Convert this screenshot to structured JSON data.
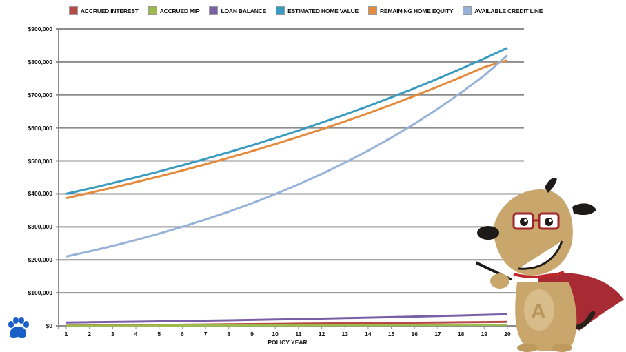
{
  "chart_data": {
    "type": "line",
    "title": "",
    "xlabel": "POLICY YEAR",
    "ylabel": "",
    "ylim": [
      0,
      900000
    ],
    "grid": true,
    "legend_position": "top",
    "y_ticks": [
      "$0",
      "$100,000",
      "$200,000",
      "$300,000",
      "$400,000",
      "$500,000",
      "$600,000",
      "$700,000",
      "$800,000",
      "$900,000"
    ],
    "x": [
      1,
      2,
      3,
      4,
      5,
      6,
      7,
      8,
      9,
      10,
      11,
      12,
      13,
      14,
      15,
      16,
      17,
      18,
      19,
      20
    ],
    "series": [
      {
        "name": "ACCRUED INTEREST",
        "color": "#b84a45",
        "values": [
          500,
          1000,
          1600,
          2200,
          2800,
          3400,
          4000,
          4600,
          5200,
          5800,
          6400,
          7000,
          7600,
          8200,
          8800,
          9400,
          10000,
          10600,
          11200,
          11800
        ]
      },
      {
        "name": "ACCRUED MIP",
        "color": "#9bbb4e",
        "values": [
          200,
          350,
          500,
          650,
          800,
          950,
          1100,
          1250,
          1400,
          1550,
          1700,
          1850,
          2000,
          2150,
          2300,
          2450,
          2600,
          2750,
          2900,
          3050
        ]
      },
      {
        "name": "LOAN BALANCE",
        "color": "#7b5fa6",
        "values": [
          10000,
          10800,
          11700,
          12600,
          13600,
          14600,
          15700,
          16800,
          18000,
          19200,
          20500,
          21900,
          23300,
          24800,
          26300,
          27900,
          29600,
          31300,
          33100,
          35000
        ]
      },
      {
        "name": "ESTIMATED HOME VALUE",
        "color": "#3a9ac0",
        "values": [
          400000,
          416000,
          432600,
          449900,
          467900,
          486600,
          506100,
          526300,
          547400,
          569300,
          592000,
          615700,
          640300,
          665900,
          692600,
          720300,
          749100,
          779000,
          810200,
          842600
        ]
      },
      {
        "name": "REMAINING HOME EQUITY",
        "color": "#e58a3a",
        "values": [
          387000,
          402500,
          418600,
          435300,
          452700,
          470800,
          489600,
          509200,
          529600,
          550800,
          572800,
          595700,
          619500,
          644300,
          670100,
          697000,
          724800,
          753800,
          784000,
          805000
        ]
      },
      {
        "name": "AVAILABLE CREDIT LINE",
        "color": "#96b2d9",
        "values": [
          210000,
          225500,
          242200,
          260100,
          279300,
          300000,
          322200,
          346000,
          371600,
          399100,
          428600,
          460300,
          494400,
          531000,
          570300,
          612500,
          657800,
          706500,
          758700,
          820000
        ]
      }
    ]
  },
  "legend": [
    {
      "label": "ACCRUED INTEREST",
      "color": "#b84a45"
    },
    {
      "label": "ACCRUED MIP",
      "color": "#9bbb4e"
    },
    {
      "label": "LOAN BALANCE",
      "color": "#7b5fa6"
    },
    {
      "label": "ESTIMATED HOME VALUE",
      "color": "#3a9ac0"
    },
    {
      "label": "REMAINING HOME EQUITY",
      "color": "#e58a3a"
    },
    {
      "label": "AVAILABLE CREDIT LINE",
      "color": "#96b2d9"
    }
  ],
  "axis": {
    "x_title": "POLICY YEAR"
  },
  "icons": {
    "mascot": "dog-mascot-with-pointer",
    "paw": "paw-print-icon"
  }
}
